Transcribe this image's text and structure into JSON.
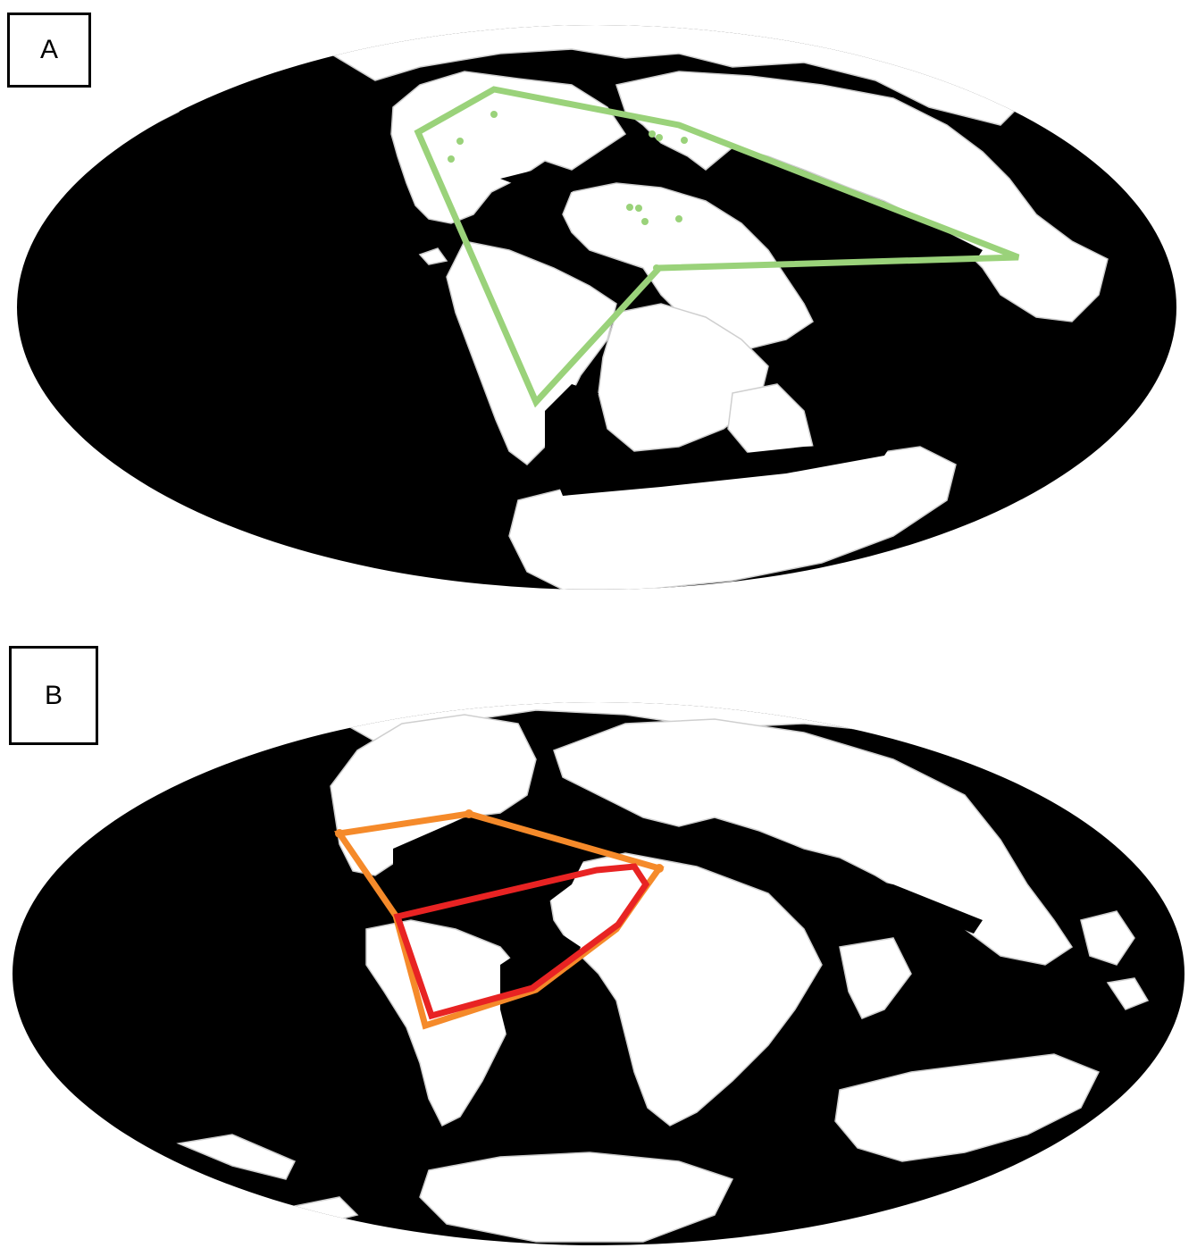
{
  "panels": [
    {
      "label": "A",
      "colors": {
        "ocean": "#000000",
        "land": "#ffffff",
        "coast": "#d8d8d8",
        "range": "#9ad27a"
      }
    },
    {
      "label": "B",
      "colors": {
        "ocean": "#000000",
        "land": "#ffffff",
        "coast": "#d8d8d8",
        "range_outer": "#f58a2a",
        "range_inner": "#e82323"
      }
    }
  ]
}
